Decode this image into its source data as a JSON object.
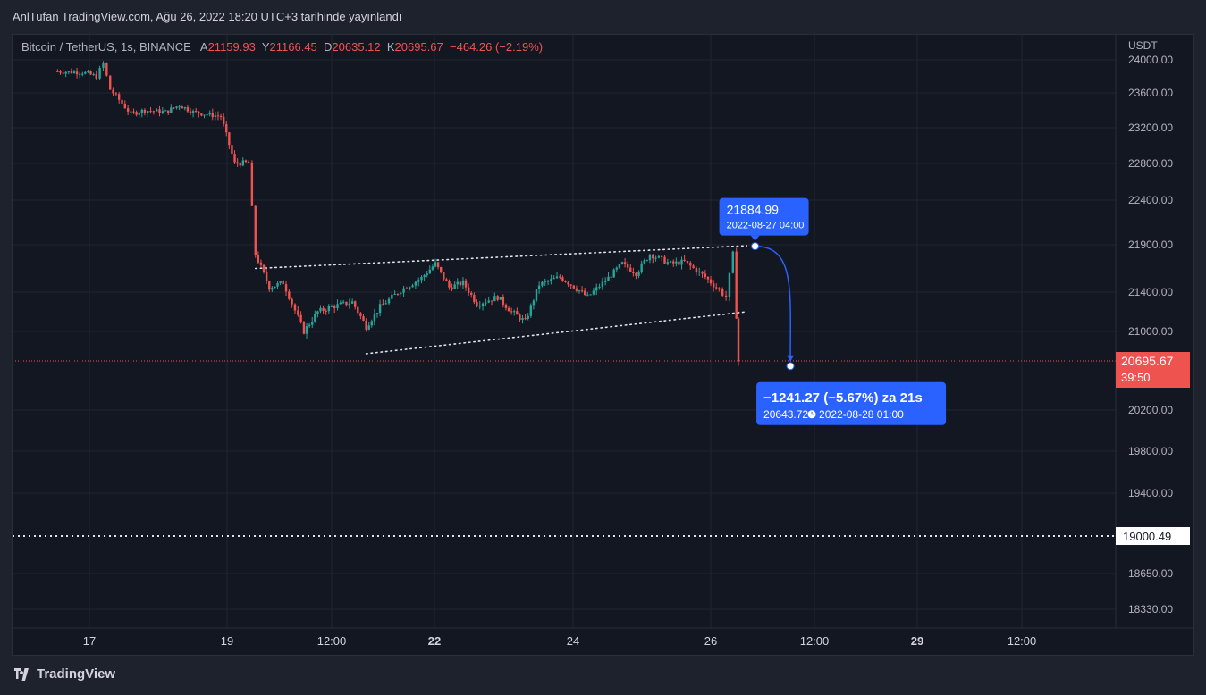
{
  "header": {
    "caption": "AnlTufan TradingView.com, Ağu 26, 2022 18:20 UTC+3 tarihinde yayınlandı"
  },
  "legend": {
    "symbol": "Bitcoin / TetherUS, 1s, BINANCE",
    "open_label": "A",
    "open": "21159.93",
    "high_label": "Y",
    "high": "21166.45",
    "low_label": "D",
    "low": "20635.12",
    "close_label": "K",
    "close": "20695.67",
    "change": "−464.26 (−2.19%)"
  },
  "footer": {
    "brand": "TradingView"
  },
  "colors": {
    "up": "#26a69a",
    "down": "#ef5350",
    "accent": "#2962ff",
    "bg": "#131722",
    "text": "#b2b5be"
  },
  "chart_data": {
    "type": "candlestick",
    "currency_label": "USDT",
    "y_ticks": [
      "24000.00",
      "23600.00",
      "23200.00",
      "22800.00",
      "22400.00",
      "21900.00",
      "21400.00",
      "21000.00",
      "20200.00",
      "19800.00",
      "19400.00",
      "18650.00",
      "18330.00"
    ],
    "x_ticks": [
      {
        "label": "17",
        "bold": false
      },
      {
        "label": "19",
        "bold": false
      },
      {
        "label": "12:00",
        "bold": false
      },
      {
        "label": "22",
        "bold": true
      },
      {
        "label": "24",
        "bold": false
      },
      {
        "label": "26",
        "bold": false
      },
      {
        "label": "12:00",
        "bold": false
      },
      {
        "label": "29",
        "bold": true
      },
      {
        "label": "12:00",
        "bold": false
      }
    ],
    "price_path": [
      [
        16.5,
        23860
      ],
      [
        16.9,
        23850
      ],
      [
        17.1,
        23800
      ],
      [
        17.2,
        23960
      ],
      [
        17.3,
        23640
      ],
      [
        17.6,
        23360
      ],
      [
        17.8,
        23400
      ],
      [
        18.1,
        23380
      ],
      [
        18.3,
        23460
      ],
      [
        18.5,
        23380
      ],
      [
        18.9,
        23330
      ],
      [
        19.1,
        22800
      ],
      [
        19.3,
        22810
      ],
      [
        19.4,
        21800
      ],
      [
        19.6,
        21450
      ],
      [
        19.8,
        21500
      ],
      [
        20.1,
        21000
      ],
      [
        20.3,
        21200
      ],
      [
        20.5,
        21250
      ],
      [
        20.8,
        21300
      ],
      [
        21.0,
        21050
      ],
      [
        21.2,
        21250
      ],
      [
        21.5,
        21420
      ],
      [
        21.8,
        21550
      ],
      [
        22.0,
        21700
      ],
      [
        22.2,
        21450
      ],
      [
        22.4,
        21500
      ],
      [
        22.6,
        21280
      ],
      [
        22.9,
        21350
      ],
      [
        23.1,
        21200
      ],
      [
        23.3,
        21100
      ],
      [
        23.5,
        21480
      ],
      [
        23.8,
        21560
      ],
      [
        24.0,
        21460
      ],
      [
        24.2,
        21350
      ],
      [
        24.5,
        21550
      ],
      [
        24.7,
        21700
      ],
      [
        24.9,
        21600
      ],
      [
        25.1,
        21800
      ],
      [
        25.4,
        21700
      ],
      [
        25.6,
        21720
      ],
      [
        25.9,
        21560
      ],
      [
        26.1,
        21420
      ],
      [
        26.2,
        21350
      ],
      [
        26.3,
        21800
      ],
      [
        26.35,
        21159
      ],
      [
        26.38,
        20696
      ]
    ],
    "last_price": "20695.67",
    "countdown": "39:50",
    "support_level": "19000.49",
    "channel_upper": {
      "from": [
        19.4,
        21650
      ],
      "to": [
        26.5,
        21890
      ]
    },
    "channel_lower": {
      "from": [
        21.0,
        20770
      ],
      "to": [
        26.5,
        21200
      ]
    },
    "projection": {
      "start_price": "21884.99",
      "start_date": "2022-08-27 04:00",
      "end_summary": "−1241.27 (−5.67%) za 21s",
      "end_price": "20643.72",
      "end_date": "2022-08-28  01:00"
    }
  }
}
